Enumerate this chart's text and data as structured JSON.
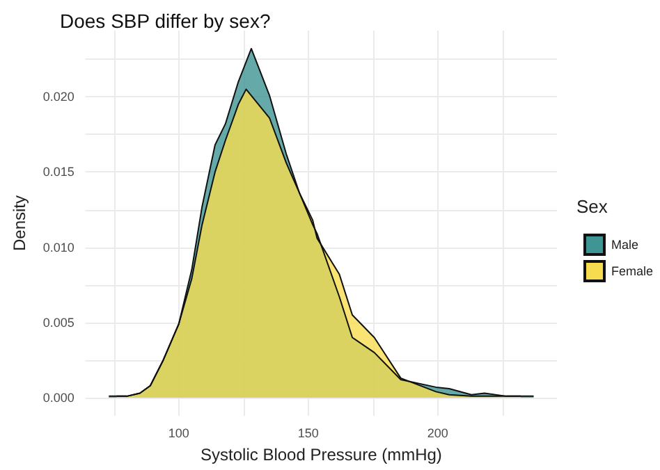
{
  "chart_data": {
    "type": "area",
    "title": "Does SBP differ by sex?",
    "xlabel": "Systolic Blood Pressure (mmHg)",
    "ylabel": "Density",
    "legend_title": "Sex",
    "legend": "right",
    "grid": true,
    "xlim": [
      64,
      246
    ],
    "xticks": [
      {
        "value": 75,
        "label": null
      },
      100,
      {
        "value": 125,
        "label": null
      },
      150,
      {
        "value": 175,
        "label": null
      },
      200,
      {
        "value": 225,
        "label": null
      }
    ],
    "ylim": [
      -0.0012,
      0.0244
    ],
    "yticks": [
      {
        "value": 0,
        "label": "0.000"
      },
      {
        "value": 0.0025,
        "label": null
      },
      {
        "value": 0.005,
        "label": "0.005"
      },
      {
        "value": 0.0075,
        "label": null
      },
      {
        "value": 0.01,
        "label": "0.010"
      },
      {
        "value": 0.0125,
        "label": null
      },
      {
        "value": 0.015,
        "label": "0.015"
      },
      {
        "value": 0.0175,
        "label": null
      },
      {
        "value": 0.02,
        "label": "0.020"
      },
      {
        "value": 0.0225,
        "label": null
      }
    ],
    "series": [
      {
        "name": "Male",
        "color": "#3f9494",
        "x": [
          73,
          80,
          85,
          89,
          94,
          100,
          105,
          109,
          114,
          118,
          123,
          128,
          135,
          141.5,
          146.6,
          151.7,
          153.4,
          162,
          167,
          175.5,
          185.7,
          199.3,
          204.4,
          213,
          218,
          226.5,
          237
        ],
        "values": [
          0.0001,
          0.0001,
          0.0003,
          0.0008,
          0.0025,
          0.0049,
          0.0085,
          0.0127,
          0.0168,
          0.0182,
          0.021,
          0.0232,
          0.0201,
          0.0162,
          0.0136,
          0.0115,
          0.0109,
          0.0067,
          0.004,
          0.003,
          0.0012,
          0.0007,
          0.0006,
          0.0002,
          0.0003,
          0.0001,
          0.0001
        ]
      },
      {
        "name": "Female",
        "color": "#f7dc4f",
        "x": [
          76,
          80,
          85,
          89,
          94,
          100,
          105,
          109,
          114,
          118,
          123,
          126,
          135,
          141.5,
          146.6,
          151.7,
          153.4,
          162,
          167,
          175.5,
          185.7,
          199.3,
          204.4,
          213,
          218,
          226.5,
          232
        ],
        "values": [
          0.0001,
          0.0001,
          0.0003,
          0.0008,
          0.0025,
          0.0049,
          0.0079,
          0.0115,
          0.015,
          0.0171,
          0.0195,
          0.0205,
          0.0186,
          0.0156,
          0.0136,
          0.0118,
          0.0106,
          0.0082,
          0.0055,
          0.004,
          0.0013,
          0.0004,
          0.0002,
          0.0001,
          0.0001,
          0.0001,
          0.0001
        ]
      }
    ]
  }
}
